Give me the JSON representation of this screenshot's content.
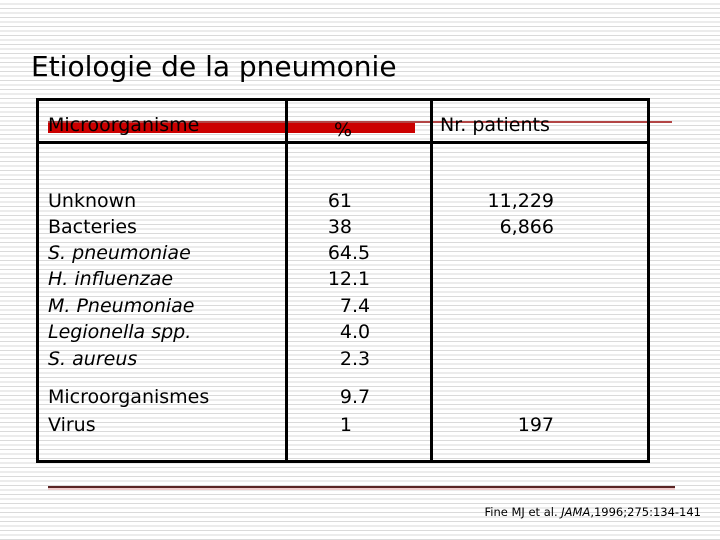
{
  "slide": {
    "title": "Etiologie de la pneumonie",
    "citation": {
      "prefix": "Fine MJ et al. ",
      "journal": "JAMA",
      "suffix": ",1996;275:134-141"
    }
  },
  "table": {
    "headers": {
      "col1": "Microorganisme",
      "col2": "%",
      "col3": "Nr. patients"
    },
    "rows": [
      {
        "name": "Unknown",
        "italic": false,
        "pct": "61",
        "patients": "11,229"
      },
      {
        "name": "Bacteries",
        "italic": false,
        "pct": "38",
        "patients": "6,866"
      },
      {
        "name": "S. pneumoniae",
        "italic": true,
        "pct": "64.5",
        "patients": ""
      },
      {
        "name": "H. influenzae",
        "italic": true,
        "pct": "12.1",
        "patients": ""
      },
      {
        "name": "M. Pneumoniae",
        "italic": true,
        "pct": "7.4",
        "patients": ""
      },
      {
        "name": "Legionella spp.",
        "italic": true,
        "pct": "4.0",
        "patients": ""
      },
      {
        "name": "S. aureus",
        "italic": true,
        "pct": "2.3",
        "patients": ""
      },
      {
        "name": "Microorganismes",
        "italic": false,
        "pct": "9.7",
        "patients": ""
      },
      {
        "name": "Virus",
        "italic": false,
        "pct": "1",
        "patients": "197"
      }
    ]
  },
  "colors": {
    "accent_bar": "#cc0000",
    "accent_line": "#b34545",
    "footer_line_dark": "#5a2424",
    "footer_line_pink": "#eecaca"
  }
}
